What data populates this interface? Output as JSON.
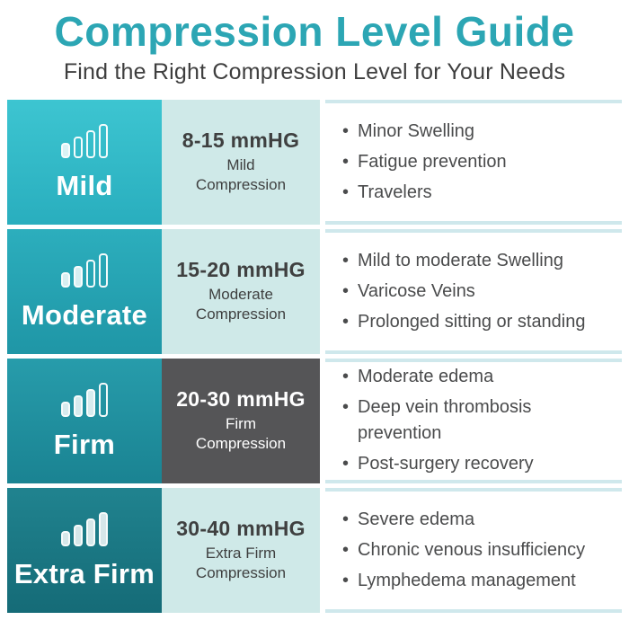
{
  "header": {
    "title": "Compression Level Guide",
    "subtitle": "Find the Right Compression Level for Your Needs"
  },
  "colors": {
    "title_text": "#2CA6B4",
    "subtitle_text": "#3E3E3E",
    "mint_panel": "#CFE9E8",
    "dark_panel": "#555557",
    "panel_border": "#CFE8EC",
    "body_text": "#4A4B4C",
    "tile_gradients": [
      [
        "#3DC5D1",
        "#29AEBE"
      ],
      [
        "#2CAEBD",
        "#1F96A6"
      ],
      [
        "#279CAB",
        "#1A8392"
      ],
      [
        "#20838F",
        "#156B77"
      ]
    ]
  },
  "rows": [
    {
      "level": "Mild",
      "bars_filled": 1,
      "range": "8-15 mmHG",
      "compression": "Mild Compression",
      "benefits": [
        "Minor Swelling",
        "Fatigue prevention",
        "Travelers"
      ]
    },
    {
      "level": "Moderate",
      "bars_filled": 2,
      "range": "15-20 mmHG",
      "compression": "Moderate Compression",
      "benefits": [
        "Mild to moderate Swelling",
        "Varicose Veins",
        "Prolonged sitting or standing"
      ]
    },
    {
      "level": "Firm",
      "bars_filled": 3,
      "range": "20-30 mmHG",
      "compression": "Firm Compression",
      "benefits": [
        "Moderate edema",
        "Deep vein thrombosis prevention",
        "Post-surgery recovery"
      ]
    },
    {
      "level": "Extra Firm",
      "bars_filled": 4,
      "range": "30-40 mmHG",
      "compression": "Extra Firm Compression",
      "benefits": [
        "Severe edema",
        "Chronic venous insufficiency",
        "Lymphedema management"
      ]
    }
  ]
}
